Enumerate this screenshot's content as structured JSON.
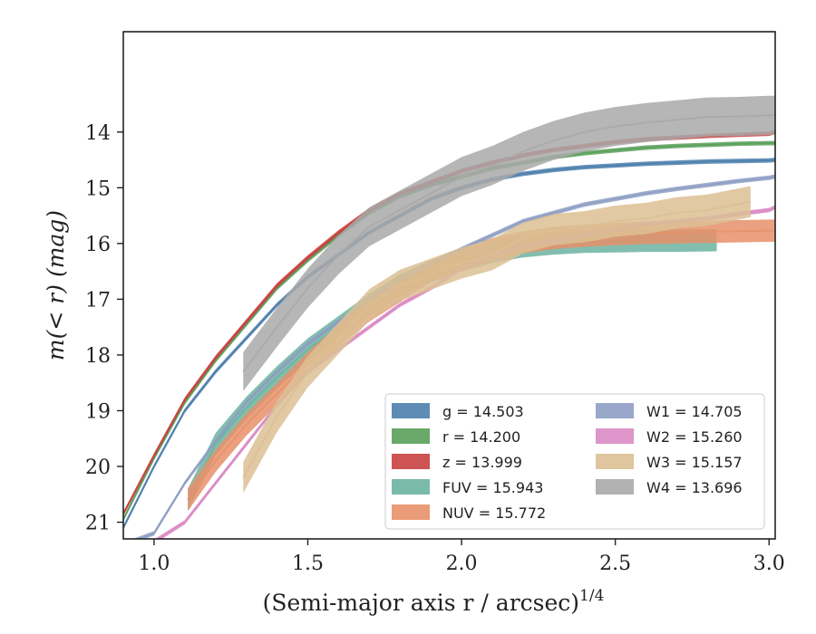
{
  "chart_data": {
    "type": "line",
    "xlabel": "(Semi-major axis r / arcsec)",
    "xlabel_exponent": "1/4",
    "ylabel": "m(< r) (mag)",
    "xlim": [
      0.9,
      3.02
    ],
    "ylim": [
      21.3,
      12.2
    ],
    "y_inverted": true,
    "xticks": [
      "1.0",
      "1.5",
      "2.0",
      "2.5",
      "3.0"
    ],
    "xtick_values": [
      1.0,
      1.5,
      2.0,
      2.5,
      3.0
    ],
    "yticks": [
      "14",
      "15",
      "16",
      "17",
      "18",
      "19",
      "20",
      "21"
    ],
    "ytick_values": [
      14,
      15,
      16,
      17,
      18,
      19,
      20,
      21
    ],
    "grid": false,
    "legend_position": "lower-right",
    "series": [
      {
        "name": "g",
        "label": "g = 14.503",
        "color": "#4c7fad",
        "x": [
          0.9,
          1.0,
          1.1,
          1.2,
          1.3,
          1.4,
          1.5,
          1.6,
          1.7,
          1.8,
          1.9,
          2.0,
          2.1,
          2.2,
          2.3,
          2.4,
          2.5,
          2.6,
          2.7,
          2.8,
          2.9,
          3.0,
          3.02
        ],
        "y": [
          21.1,
          20.0,
          19.0,
          18.3,
          17.7,
          17.1,
          16.6,
          16.2,
          15.8,
          15.5,
          15.2,
          15.0,
          14.85,
          14.75,
          14.68,
          14.63,
          14.6,
          14.57,
          14.55,
          14.53,
          14.52,
          14.51,
          14.5
        ],
        "band": 0.04
      },
      {
        "name": "r",
        "label": "r = 14.200",
        "color": "#5aa05a",
        "x": [
          0.9,
          1.0,
          1.1,
          1.2,
          1.3,
          1.4,
          1.5,
          1.6,
          1.7,
          1.8,
          1.9,
          2.0,
          2.1,
          2.2,
          2.3,
          2.4,
          2.5,
          2.6,
          2.7,
          2.8,
          2.9,
          3.0,
          3.02
        ],
        "y": [
          20.95,
          19.85,
          18.85,
          18.1,
          17.45,
          16.8,
          16.3,
          15.85,
          15.45,
          15.15,
          14.95,
          14.8,
          14.65,
          14.55,
          14.45,
          14.38,
          14.33,
          14.28,
          14.25,
          14.23,
          14.21,
          14.2,
          14.2
        ],
        "band": 0.04
      },
      {
        "name": "z",
        "label": "z = 13.999",
        "color": "#c94040",
        "x": [
          0.9,
          1.0,
          1.1,
          1.2,
          1.3,
          1.4,
          1.5,
          1.6,
          1.7,
          1.8,
          1.9,
          2.0,
          2.1,
          2.2,
          2.3,
          2.4,
          2.5,
          2.6,
          2.7,
          2.8,
          2.9,
          3.0,
          3.02
        ],
        "y": [
          20.85,
          19.8,
          18.8,
          18.05,
          17.4,
          16.75,
          16.25,
          15.8,
          15.4,
          15.1,
          14.9,
          14.7,
          14.55,
          14.42,
          14.32,
          14.25,
          14.18,
          14.13,
          14.1,
          14.07,
          14.05,
          14.03,
          14.0
        ],
        "band": 0.04
      },
      {
        "name": "FUV",
        "label": "FUV = 15.943",
        "color": "#6cb3a0",
        "x": [
          1.11,
          1.2,
          1.3,
          1.4,
          1.5,
          1.6,
          1.7,
          1.8,
          1.9,
          2.0,
          2.1,
          2.2,
          2.3,
          2.4,
          2.5,
          2.6,
          2.7,
          2.83
        ],
        "y": [
          20.6,
          19.6,
          18.95,
          18.4,
          17.9,
          17.5,
          17.1,
          16.75,
          16.5,
          16.3,
          16.15,
          16.05,
          16.0,
          15.97,
          15.96,
          15.95,
          15.95,
          15.94
        ],
        "band": 0.2
      },
      {
        "name": "NUV",
        "label": "NUV = 15.772",
        "color": "#e8916a",
        "x": [
          1.11,
          1.2,
          1.3,
          1.4,
          1.5,
          1.6,
          1.7,
          1.8,
          1.9,
          2.0,
          2.1,
          2.2,
          2.3,
          2.4,
          2.5,
          2.6,
          2.7,
          2.8,
          2.9,
          3.0,
          3.02
        ],
        "y": [
          20.6,
          19.9,
          19.25,
          18.7,
          18.15,
          17.65,
          17.2,
          16.85,
          16.5,
          16.3,
          16.1,
          15.98,
          15.9,
          15.86,
          15.83,
          15.81,
          15.8,
          15.79,
          15.78,
          15.77,
          15.77
        ],
        "band": 0.2
      },
      {
        "name": "W1",
        "label": "W1 = 14.705",
        "color": "#8e9fc4",
        "x": [
          0.9,
          1.0,
          1.1,
          1.2,
          1.3,
          1.4,
          1.5,
          1.6,
          1.7,
          1.8,
          1.9,
          2.0,
          2.1,
          2.2,
          2.3,
          2.4,
          2.5,
          2.6,
          2.7,
          2.8,
          2.9,
          3.0,
          3.02
        ],
        "y": [
          21.4,
          21.2,
          20.3,
          19.55,
          18.85,
          18.3,
          17.8,
          17.4,
          17.0,
          16.65,
          16.35,
          16.1,
          15.85,
          15.6,
          15.45,
          15.3,
          15.2,
          15.1,
          15.02,
          14.95,
          14.88,
          14.82,
          14.8
        ],
        "band": 0.04
      },
      {
        "name": "W2",
        "label": "W2 = 15.260",
        "color": "#d98ac4",
        "x": [
          0.9,
          1.0,
          1.1,
          1.2,
          1.3,
          1.4,
          1.5,
          1.6,
          1.7,
          1.8,
          1.9,
          2.0,
          2.1,
          2.2,
          2.3,
          2.4,
          2.5,
          2.6,
          2.7,
          2.8,
          2.9,
          3.0,
          3.02
        ],
        "y": [
          21.4,
          21.35,
          21.0,
          20.3,
          19.6,
          18.9,
          18.3,
          17.9,
          17.5,
          17.1,
          16.8,
          16.45,
          16.2,
          16.05,
          15.95,
          15.85,
          15.75,
          15.65,
          15.6,
          15.55,
          15.47,
          15.4,
          15.35
        ],
        "band": 0.04
      },
      {
        "name": "W3",
        "label": "W3 = 15.157",
        "color": "#dcc094",
        "x": [
          1.29,
          1.4,
          1.5,
          1.6,
          1.7,
          1.8,
          1.9,
          2.0,
          2.1,
          2.2,
          2.3,
          2.4,
          2.5,
          2.6,
          2.7,
          2.8,
          2.94
        ],
        "y": [
          20.2,
          19.1,
          18.3,
          17.7,
          17.1,
          16.75,
          16.55,
          16.35,
          16.2,
          15.9,
          15.75,
          15.7,
          15.6,
          15.55,
          15.45,
          15.4,
          15.25
        ],
        "band": 0.28
      },
      {
        "name": "W4",
        "label": "W4 = 13.696",
        "color": "#a9a9a9",
        "x": [
          1.29,
          1.4,
          1.5,
          1.6,
          1.7,
          1.8,
          1.9,
          2.0,
          2.1,
          2.2,
          2.3,
          2.4,
          2.5,
          2.6,
          2.7,
          2.8,
          2.9,
          3.0,
          3.02
        ],
        "y": [
          18.3,
          17.5,
          16.8,
          16.2,
          15.7,
          15.4,
          15.1,
          14.8,
          14.6,
          14.35,
          14.15,
          14.0,
          13.9,
          13.83,
          13.78,
          13.73,
          13.72,
          13.7,
          13.7
        ],
        "band": 0.35
      }
    ]
  }
}
